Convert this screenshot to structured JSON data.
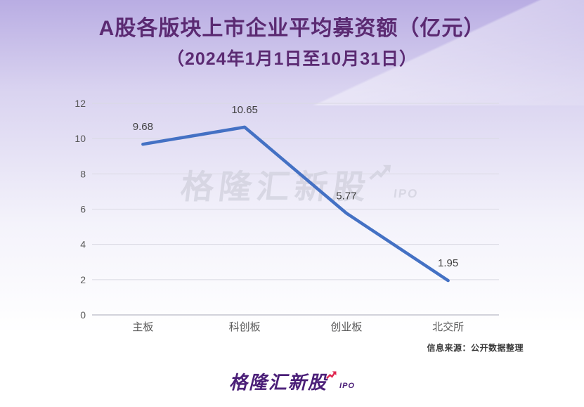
{
  "header": {
    "title": "A股各版块上市企业平均募资额（亿元）",
    "subtitle": "（2024年1月1日至10月31日）"
  },
  "chart_data": {
    "type": "line",
    "categories": [
      "主板",
      "科创板",
      "创业板",
      "北交所"
    ],
    "values": [
      9.68,
      10.65,
      5.77,
      1.95
    ],
    "data_labels": [
      "9.68",
      "10.65",
      "5.77",
      "1.95"
    ],
    "title": "A股各版块上市企业平均募资额（亿元）",
    "subtitle": "（2024年1月1日至10月31日）",
    "xlabel": "",
    "ylabel": "",
    "ylim": [
      0,
      12
    ],
    "yticks": [
      0,
      2,
      4,
      6,
      8,
      10,
      12
    ],
    "grid": true,
    "legend": "none",
    "line_color": "#4471c4",
    "grid_color": "#d9d9e2",
    "axis_color": "#c5c5cf",
    "tick_color": "#595959",
    "value_color": "#404040"
  },
  "watermark": {
    "text": "格隆汇新股",
    "suffix": "IPO"
  },
  "source": {
    "label": "信息来源：公开数据整理"
  },
  "footer_logo": {
    "text": "格隆汇新股",
    "suffix": "IPO"
  },
  "colors": {
    "title_color": "#5b2a72",
    "watermark_color": "#c7c7d3",
    "source_color": "#3a3a3a",
    "logo_purple": "#4b1f78",
    "logo_arrow_red": "#e0264f",
    "bg_top": "#b9ade3",
    "bg_bottom": "#ffffff"
  }
}
